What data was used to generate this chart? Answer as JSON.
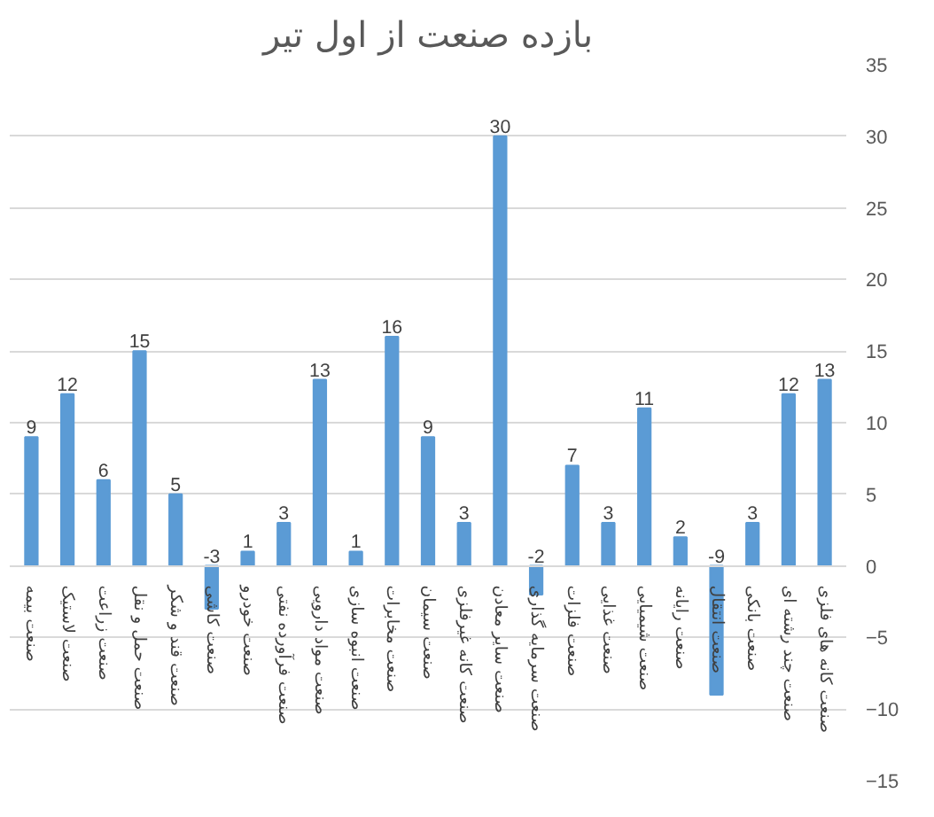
{
  "chart_data": {
    "type": "bar",
    "title": "بازده صنعت از اول تیر",
    "categories": [
      "صنعت بیمه",
      "صنعت لاستیک",
      "صنعت زراعت",
      "صنعت حمل و نقل",
      "صنعت قند و شکر",
      "صنعت کاشی",
      "صنعت خودرو",
      "صنعت فرآورده نفتی",
      "صنعت مواد دارویی",
      "صنعت انبوه سازی",
      "صنعت مخابرات",
      "صنعت سیمان",
      "صنعت کانه غیرفلزی",
      "صنعت سایر معادن",
      "صنعت سرمایه گذاری",
      "صنعت فلزات",
      "صنعت غذایی",
      "صنعت شیمیایی",
      "صنعت رایانه",
      "صنعت انتقال",
      "صنعت بانکی",
      "صنعت چند رشته ای",
      "صنعت کانه های فلزی"
    ],
    "values": [
      9,
      12,
      6,
      15,
      5,
      -3,
      1,
      3,
      13,
      1,
      16,
      9,
      3,
      30,
      -2,
      7,
      3,
      11,
      2,
      -9,
      3,
      12,
      13
    ],
    "color": "#5b9bd5",
    "ylim": [
      -15,
      35
    ],
    "yticks": [
      -15,
      -10,
      -5,
      0,
      5,
      10,
      15,
      20,
      25,
      30,
      35
    ],
    "grid": "y",
    "data_labels": true
  }
}
